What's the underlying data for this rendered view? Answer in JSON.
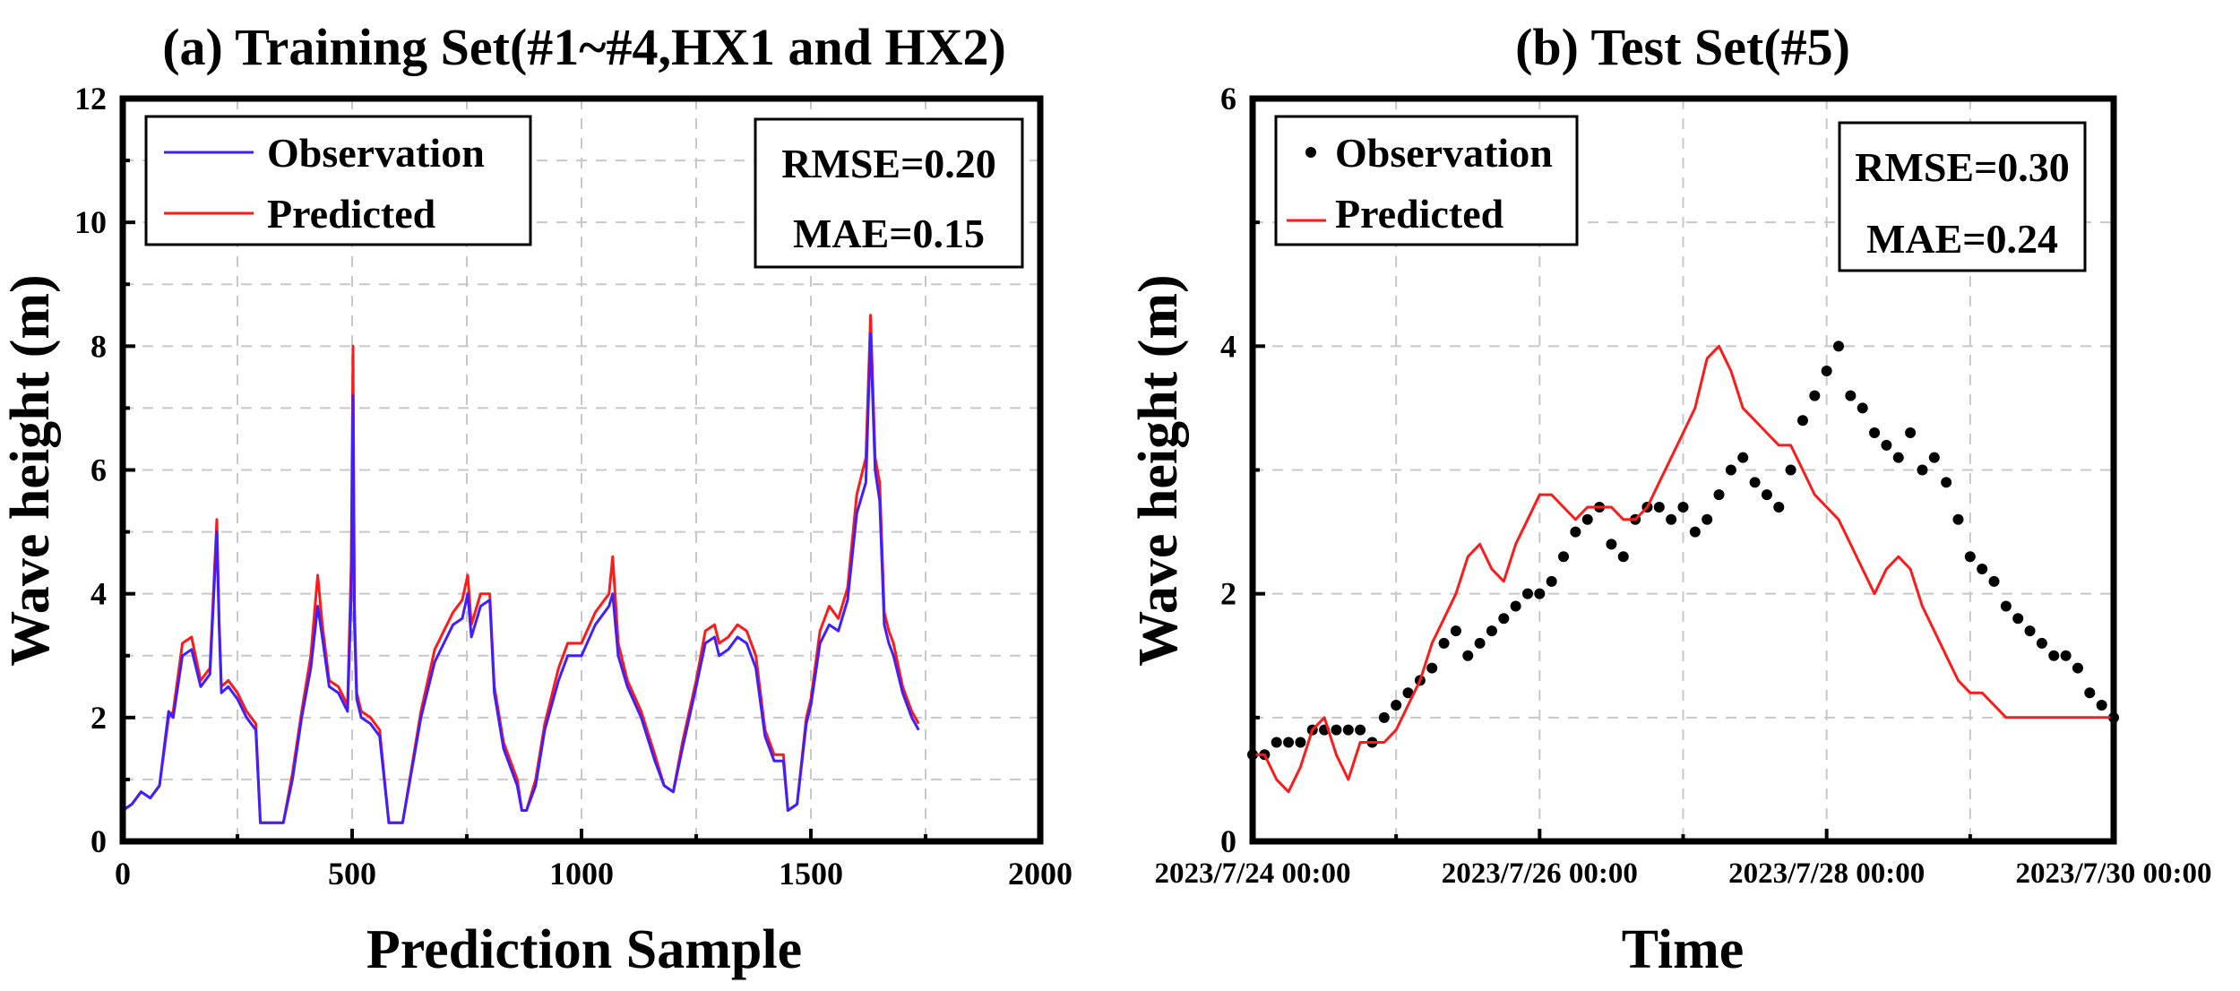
{
  "chart_data": [
    {
      "type": "line",
      "title": "(a) Training Set(#1~#4,HX1 and HX2)",
      "xlabel": "Prediction Sample",
      "ylabel": "Wave height (m)",
      "xlim": [
        0,
        2000
      ],
      "ylim": [
        0,
        12
      ],
      "xticks": [
        "0",
        "500",
        "1000",
        "1500",
        "2000"
      ],
      "yticks": [
        "0",
        "2",
        "4",
        "6",
        "8",
        "10",
        "12"
      ],
      "grid": true,
      "legend_position": "top-left",
      "metrics": {
        "rmse": "RMSE=0.20",
        "mae": "MAE=0.15"
      },
      "series": [
        {
          "name": "Observation",
          "color": "#3f1fff",
          "x": [
            0,
            20,
            40,
            60,
            80,
            100,
            110,
            130,
            150,
            170,
            190,
            205,
            210,
            215,
            230,
            250,
            270,
            290,
            300,
            330,
            350,
            370,
            390,
            410,
            425,
            435,
            450,
            470,
            490,
            498,
            502,
            505,
            510,
            520,
            540,
            560,
            580,
            600,
            610,
            650,
            680,
            700,
            720,
            740,
            752,
            760,
            780,
            800,
            810,
            830,
            860,
            870,
            880,
            900,
            920,
            950,
            970,
            1000,
            1030,
            1060,
            1068,
            1080,
            1100,
            1130,
            1160,
            1180,
            1200,
            1220,
            1250,
            1270,
            1290,
            1300,
            1320,
            1340,
            1360,
            1380,
            1400,
            1420,
            1440,
            1450,
            1470,
            1490,
            1500,
            1520,
            1540,
            1560,
            1580,
            1600,
            1620,
            1630,
            1640,
            1650,
            1660,
            1670,
            1680,
            1700,
            1720,
            1735
          ],
          "values": [
            0.5,
            0.6,
            0.8,
            0.7,
            0.9,
            2.1,
            2.0,
            3.0,
            3.1,
            2.5,
            2.7,
            5.0,
            3.5,
            2.4,
            2.5,
            2.3,
            2.0,
            1.8,
            0.3,
            0.3,
            0.3,
            1.0,
            2.0,
            2.8,
            3.8,
            3.3,
            2.5,
            2.4,
            2.1,
            4.0,
            7.2,
            3.5,
            2.3,
            2.0,
            1.9,
            1.7,
            0.3,
            0.3,
            0.3,
            2.0,
            2.9,
            3.2,
            3.5,
            3.6,
            4.0,
            3.3,
            3.8,
            3.9,
            2.4,
            1.5,
            0.9,
            0.5,
            0.5,
            0.9,
            1.8,
            2.6,
            3.0,
            3.0,
            3.5,
            3.8,
            4.0,
            3.0,
            2.5,
            2.0,
            1.3,
            0.9,
            0.8,
            1.5,
            2.5,
            3.2,
            3.3,
            3.0,
            3.1,
            3.3,
            3.2,
            2.8,
            1.7,
            1.3,
            1.3,
            0.5,
            0.6,
            1.9,
            2.2,
            3.2,
            3.5,
            3.4,
            3.9,
            5.3,
            5.8,
            8.2,
            6.0,
            5.5,
            3.5,
            3.2,
            3.0,
            2.4,
            2.0,
            1.8
          ]
        },
        {
          "name": "Predicted",
          "color": "#ff1a1a",
          "x": [
            0,
            20,
            40,
            60,
            80,
            100,
            110,
            130,
            150,
            170,
            190,
            205,
            210,
            215,
            230,
            250,
            270,
            290,
            300,
            330,
            350,
            370,
            390,
            410,
            425,
            435,
            450,
            470,
            490,
            498,
            502,
            505,
            510,
            520,
            540,
            560,
            580,
            600,
            610,
            650,
            680,
            700,
            720,
            740,
            752,
            760,
            780,
            800,
            810,
            830,
            860,
            870,
            880,
            900,
            920,
            950,
            970,
            1000,
            1030,
            1060,
            1068,
            1080,
            1100,
            1130,
            1160,
            1180,
            1200,
            1220,
            1250,
            1270,
            1290,
            1300,
            1320,
            1340,
            1360,
            1380,
            1400,
            1420,
            1440,
            1450,
            1470,
            1490,
            1500,
            1520,
            1540,
            1560,
            1580,
            1600,
            1620,
            1630,
            1640,
            1650,
            1660,
            1670,
            1680,
            1700,
            1720,
            1735
          ],
          "values": [
            0.5,
            0.6,
            0.8,
            0.7,
            0.9,
            2.0,
            2.1,
            3.2,
            3.3,
            2.6,
            2.8,
            5.2,
            3.6,
            2.5,
            2.6,
            2.4,
            2.1,
            1.9,
            0.3,
            0.3,
            0.3,
            1.1,
            2.1,
            3.0,
            4.3,
            3.5,
            2.6,
            2.5,
            2.2,
            4.5,
            8.0,
            3.8,
            2.4,
            2.1,
            2.0,
            1.8,
            0.3,
            0.3,
            0.3,
            2.1,
            3.1,
            3.4,
            3.7,
            3.9,
            4.3,
            3.5,
            4.0,
            4.0,
            2.5,
            1.6,
            1.0,
            0.5,
            0.5,
            1.0,
            1.9,
            2.8,
            3.2,
            3.2,
            3.7,
            4.0,
            4.6,
            3.2,
            2.6,
            2.1,
            1.4,
            0.9,
            0.8,
            1.6,
            2.6,
            3.4,
            3.5,
            3.2,
            3.3,
            3.5,
            3.4,
            3.0,
            1.8,
            1.4,
            1.4,
            0.5,
            0.6,
            2.0,
            2.3,
            3.4,
            3.8,
            3.6,
            4.1,
            5.6,
            6.2,
            8.5,
            6.2,
            5.8,
            3.7,
            3.4,
            3.2,
            2.5,
            2.1,
            1.9
          ]
        }
      ]
    },
    {
      "type": "scatter",
      "title": "(b) Test Set(#5)",
      "xlabel": "Time",
      "ylabel": "Wave height (m)",
      "xlim": [
        0,
        144
      ],
      "ylim": [
        0,
        6
      ],
      "x_unit": "hours since 2023/7/24 00:00",
      "xticks": [
        "2023/7/24 00:00",
        "2023/7/26 00:00",
        "2023/7/28 00:00",
        "2023/7/30 00:00"
      ],
      "yticks": [
        "0",
        "2",
        "4",
        "6"
      ],
      "grid": true,
      "legend_position": "top-left",
      "metrics": {
        "rmse": "RMSE=0.30",
        "mae": "MAE=0.24"
      },
      "series": [
        {
          "name": "Observation",
          "color": "#000000",
          "marker": "dot",
          "x": [
            0,
            2,
            4,
            6,
            8,
            10,
            12,
            14,
            16,
            18,
            20,
            22,
            24,
            26,
            28,
            30,
            32,
            34,
            36,
            38,
            40,
            42,
            44,
            46,
            48,
            50,
            52,
            54,
            56,
            58,
            60,
            62,
            64,
            66,
            68,
            70,
            72,
            74,
            76,
            78,
            80,
            82,
            84,
            86,
            88,
            90,
            92,
            94,
            96,
            98,
            100,
            102,
            104,
            106,
            108,
            110,
            112,
            114,
            116,
            118,
            120,
            122,
            124,
            126,
            128,
            130,
            132,
            134,
            136,
            138,
            140,
            142,
            144
          ],
          "values": [
            0.7,
            0.7,
            0.8,
            0.8,
            0.8,
            0.9,
            0.9,
            0.9,
            0.9,
            0.9,
            0.8,
            1.0,
            1.1,
            1.2,
            1.3,
            1.4,
            1.6,
            1.7,
            1.5,
            1.6,
            1.7,
            1.8,
            1.9,
            2.0,
            2.0,
            2.1,
            2.3,
            2.5,
            2.6,
            2.7,
            2.4,
            2.3,
            2.6,
            2.7,
            2.7,
            2.6,
            2.7,
            2.5,
            2.6,
            2.8,
            3.0,
            3.1,
            2.9,
            2.8,
            2.7,
            3.0,
            3.4,
            3.6,
            3.8,
            4.0,
            3.6,
            3.5,
            3.3,
            3.2,
            3.1,
            3.3,
            3.0,
            3.1,
            2.9,
            2.6,
            2.3,
            2.2,
            2.1,
            1.9,
            1.8,
            1.7,
            1.6,
            1.5,
            1.5,
            1.4,
            1.2,
            1.1,
            1.0
          ]
        },
        {
          "name": "Predicted",
          "color": "#ff1a1a",
          "marker": "line",
          "x": [
            0,
            2,
            4,
            6,
            8,
            10,
            12,
            14,
            16,
            18,
            20,
            22,
            24,
            26,
            28,
            30,
            32,
            34,
            36,
            38,
            40,
            42,
            44,
            46,
            48,
            50,
            52,
            54,
            56,
            58,
            60,
            62,
            64,
            66,
            68,
            70,
            72,
            74,
            76,
            78,
            80,
            82,
            84,
            86,
            88,
            90,
            92,
            94,
            96,
            98,
            100,
            102,
            104,
            106,
            108,
            110,
            112,
            114,
            116,
            118,
            120,
            122,
            124,
            126,
            128,
            130,
            132,
            134,
            136,
            138,
            140,
            142,
            144
          ],
          "values": [
            0.7,
            0.7,
            0.5,
            0.4,
            0.6,
            0.9,
            1.0,
            0.7,
            0.5,
            0.8,
            0.8,
            0.8,
            0.9,
            1.1,
            1.3,
            1.6,
            1.8,
            2.0,
            2.3,
            2.4,
            2.2,
            2.1,
            2.4,
            2.6,
            2.8,
            2.8,
            2.7,
            2.6,
            2.7,
            2.7,
            2.7,
            2.6,
            2.6,
            2.7,
            2.9,
            3.1,
            3.3,
            3.5,
            3.9,
            4.0,
            3.8,
            3.5,
            3.4,
            3.3,
            3.2,
            3.2,
            3.0,
            2.8,
            2.7,
            2.6,
            2.4,
            2.2,
            2.0,
            2.2,
            2.3,
            2.2,
            1.9,
            1.7,
            1.5,
            1.3,
            1.2,
            1.2,
            1.1,
            1.0,
            1.0,
            1.0,
            1.0,
            1.0,
            1.0,
            1.0,
            1.0,
            1.0,
            1.0
          ]
        }
      ]
    }
  ]
}
